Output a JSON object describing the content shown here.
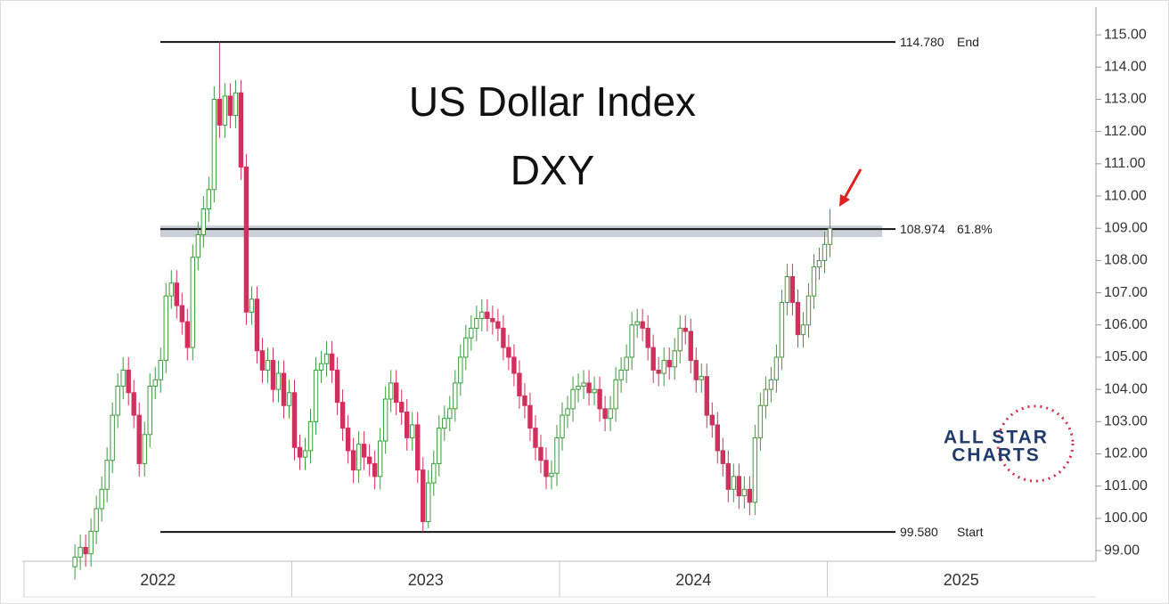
{
  "chart_data": {
    "type": "candlestick",
    "title": "US Dollar Index",
    "subtitle": "DXY",
    "watermark_lines": [
      "ALL STAR",
      "CHARTS"
    ],
    "up_color": "#3d9a3d",
    "down_color": "#d0305e",
    "xlim": [
      2022,
      2026
    ],
    "xticks": [
      2022,
      2023,
      2024,
      2025
    ],
    "ylim": [
      98.67,
      115.86
    ],
    "yticks": [
      {
        "value": 99,
        "label": "99.00"
      },
      {
        "value": 100,
        "label": "100.00"
      },
      {
        "value": 101,
        "label": "101.00"
      },
      {
        "value": 102,
        "label": "102.00"
      },
      {
        "value": 103,
        "label": "103.00"
      },
      {
        "value": 104,
        "label": "104.00"
      },
      {
        "value": 105,
        "label": "105.00"
      },
      {
        "value": 106,
        "label": "106.00"
      },
      {
        "value": 107,
        "label": "107.00"
      },
      {
        "value": 108,
        "label": "108.00"
      },
      {
        "value": 109,
        "label": "109.00"
      },
      {
        "value": 110,
        "label": "110.00"
      },
      {
        "value": 111,
        "label": "111.00"
      },
      {
        "value": 112,
        "label": "112.00"
      },
      {
        "value": 113,
        "label": "113.00"
      },
      {
        "value": 114,
        "label": "114.00"
      },
      {
        "value": 115,
        "label": "115.00"
      }
    ],
    "levels": [
      {
        "value": 114.78,
        "value_label": "114.780",
        "label": "End"
      },
      {
        "value": 108.974,
        "value_label": "108.974",
        "label": "61.8%"
      },
      {
        "value": 99.58,
        "value_label": "99.580",
        "label": "Start"
      }
    ],
    "x": [
      2022.19,
      2022.21,
      2022.23,
      2022.25,
      2022.27,
      2022.29,
      2022.31,
      2022.33,
      2022.35,
      2022.37,
      2022.39,
      2022.41,
      2022.43,
      2022.45,
      2022.47,
      2022.49,
      2022.51,
      2022.53,
      2022.55,
      2022.57,
      2022.59,
      2022.61,
      2022.63,
      2022.65,
      2022.67,
      2022.69,
      2022.71,
      2022.73,
      2022.75,
      2022.77,
      2022.79,
      2022.81,
      2022.83,
      2022.85,
      2022.87,
      2022.89,
      2022.91,
      2022.93,
      2022.95,
      2022.97,
      2022.99,
      2023.01,
      2023.03,
      2023.05,
      2023.07,
      2023.09,
      2023.11,
      2023.13,
      2023.15,
      2023.17,
      2023.19,
      2023.21,
      2023.23,
      2023.25,
      2023.27,
      2023.29,
      2023.31,
      2023.33,
      2023.35,
      2023.37,
      2023.39,
      2023.41,
      2023.43,
      2023.45,
      2023.47,
      2023.49,
      2023.51,
      2023.53,
      2023.55,
      2023.57,
      2023.59,
      2023.61,
      2023.63,
      2023.65,
      2023.67,
      2023.69,
      2023.71,
      2023.73,
      2023.75,
      2023.77,
      2023.79,
      2023.81,
      2023.83,
      2023.85,
      2023.87,
      2023.89,
      2023.91,
      2023.93,
      2023.95,
      2023.97,
      2023.99,
      2024.01,
      2024.03,
      2024.05,
      2024.07,
      2024.09,
      2024.11,
      2024.13,
      2024.15,
      2024.17,
      2024.19,
      2024.21,
      2024.23,
      2024.25,
      2024.27,
      2024.29,
      2024.31,
      2024.33,
      2024.35,
      2024.37,
      2024.39,
      2024.41,
      2024.43,
      2024.45,
      2024.47,
      2024.49,
      2024.51,
      2024.53,
      2024.55,
      2024.57,
      2024.59,
      2024.61,
      2024.63,
      2024.65,
      2024.67,
      2024.69,
      2024.71,
      2024.73,
      2024.75,
      2024.77,
      2024.79,
      2024.81,
      2024.83,
      2024.85,
      2024.87,
      2024.89,
      2024.91,
      2024.93,
      2024.95,
      2024.97,
      2024.99,
      2025.01
    ],
    "open": [
      98.5,
      98.8,
      99.1,
      98.9,
      99.6,
      100.3,
      100.9,
      101.8,
      103.2,
      104.1,
      104.6,
      103.9,
      103.2,
      101.7,
      102.6,
      104.1,
      104.3,
      104.9,
      106.9,
      107.3,
      106.6,
      106.1,
      105.3,
      108.1,
      108.8,
      109.6,
      110.2,
      113.0,
      112.2,
      113.1,
      112.5,
      113.2,
      110.9,
      106.4,
      106.8,
      105.2,
      104.6,
      104.9,
      104.0,
      104.5,
      103.5,
      103.9,
      102.2,
      101.9,
      102.1,
      103.0,
      104.6,
      104.8,
      105.1,
      104.6,
      103.6,
      102.8,
      102.1,
      101.5,
      102.3,
      101.9,
      101.7,
      101.3,
      102.4,
      103.7,
      104.2,
      103.6,
      103.3,
      102.5,
      102.9,
      101.5,
      99.9,
      101.1,
      101.7,
      102.8,
      103.1,
      103.4,
      104.2,
      105.0,
      105.6,
      105.9,
      106.2,
      106.4,
      106.2,
      106.1,
      105.9,
      105.3,
      105.0,
      104.5,
      103.8,
      103.5,
      102.8,
      102.2,
      101.8,
      101.3,
      101.4,
      102.5,
      103.2,
      103.4,
      104.0,
      104.1,
      104.2,
      103.9,
      104.0,
      103.4,
      103.1,
      103.4,
      104.3,
      104.6,
      105.0,
      106.0,
      106.1,
      105.9,
      105.3,
      104.6,
      104.5,
      104.9,
      104.7,
      105.2,
      105.9,
      105.8,
      104.9,
      104.3,
      104.4,
      103.2,
      102.9,
      102.1,
      101.7,
      100.9,
      101.3,
      100.7,
      100.9,
      100.5,
      102.5,
      103.5,
      104.0,
      104.3,
      105.0,
      106.7,
      107.5,
      106.7,
      105.7,
      106.0,
      106.9,
      107.8,
      108.0,
      108.5
    ],
    "high": [
      99.2,
      99.5,
      99.5,
      100.0,
      100.7,
      101.3,
      102.2,
      103.6,
      104.5,
      105.0,
      105.0,
      104.3,
      103.6,
      103.0,
      104.5,
      104.7,
      105.3,
      107.3,
      107.7,
      107.7,
      107.0,
      106.5,
      108.5,
      109.2,
      110.0,
      110.6,
      113.4,
      114.78,
      113.5,
      113.5,
      113.6,
      113.6,
      111.3,
      107.2,
      107.2,
      105.6,
      105.3,
      105.3,
      104.9,
      104.9,
      104.3,
      104.3,
      102.6,
      102.5,
      103.4,
      105.0,
      105.2,
      105.5,
      105.5,
      105.0,
      104.0,
      103.2,
      102.5,
      102.7,
      102.7,
      102.3,
      102.1,
      102.8,
      104.1,
      104.6,
      104.6,
      104.0,
      103.7,
      103.3,
      103.3,
      101.9,
      101.5,
      102.1,
      103.2,
      103.5,
      103.8,
      104.6,
      105.4,
      106.0,
      106.3,
      106.6,
      106.8,
      106.8,
      106.6,
      106.5,
      106.3,
      105.7,
      105.4,
      104.9,
      104.2,
      103.9,
      103.2,
      102.6,
      102.2,
      101.8,
      102.9,
      103.6,
      103.8,
      104.4,
      104.5,
      104.6,
      104.6,
      104.4,
      104.4,
      103.8,
      103.8,
      104.7,
      105.0,
      105.4,
      106.4,
      106.5,
      106.5,
      106.3,
      105.7,
      105.0,
      105.3,
      105.3,
      105.6,
      106.3,
      106.3,
      106.2,
      105.3,
      104.8,
      104.8,
      103.6,
      103.3,
      102.5,
      102.1,
      101.7,
      101.7,
      101.3,
      101.3,
      102.9,
      103.9,
      104.4,
      104.7,
      105.4,
      107.1,
      107.9,
      107.9,
      107.1,
      106.4,
      107.3,
      108.2,
      108.4,
      108.9,
      109.6
    ],
    "low": [
      98.1,
      98.4,
      98.5,
      98.5,
      99.2,
      99.9,
      100.5,
      101.4,
      102.8,
      103.7,
      103.5,
      102.8,
      101.3,
      101.3,
      102.2,
      103.7,
      103.9,
      104.5,
      106.5,
      106.2,
      105.7,
      104.9,
      104.9,
      107.7,
      108.4,
      109.2,
      109.8,
      111.8,
      111.8,
      112.1,
      112.1,
      110.5,
      106.0,
      106.0,
      104.8,
      104.2,
      104.2,
      103.6,
      103.6,
      103.1,
      103.1,
      101.8,
      101.5,
      101.5,
      101.7,
      102.6,
      104.2,
      104.4,
      104.2,
      103.2,
      102.4,
      101.7,
      101.1,
      101.1,
      101.5,
      101.3,
      100.9,
      100.9,
      102.0,
      103.3,
      103.2,
      102.9,
      102.1,
      102.1,
      101.1,
      99.58,
      99.7,
      100.7,
      101.3,
      102.4,
      102.7,
      103.0,
      103.8,
      104.6,
      105.2,
      105.5,
      105.8,
      105.8,
      105.7,
      105.5,
      104.9,
      104.6,
      104.1,
      103.4,
      103.1,
      102.4,
      101.8,
      101.4,
      100.9,
      100.9,
      101.0,
      102.1,
      102.8,
      103.0,
      103.6,
      103.7,
      103.5,
      103.5,
      103.0,
      102.7,
      102.7,
      103.0,
      103.9,
      104.2,
      104.6,
      105.6,
      105.5,
      104.9,
      104.2,
      104.1,
      104.1,
      104.3,
      104.3,
      104.8,
      105.4,
      104.5,
      103.9,
      103.9,
      102.8,
      102.5,
      101.7,
      101.3,
      100.5,
      100.5,
      100.3,
      100.3,
      100.1,
      100.1,
      102.1,
      103.1,
      103.6,
      103.9,
      104.6,
      106.3,
      106.3,
      105.3,
      105.3,
      105.6,
      106.5,
      107.4,
      107.6,
      108.1
    ],
    "close": [
      98.8,
      99.1,
      98.9,
      99.6,
      100.3,
      100.9,
      101.8,
      103.2,
      104.1,
      104.6,
      103.9,
      103.2,
      101.7,
      102.6,
      104.1,
      104.3,
      104.9,
      106.9,
      107.3,
      106.6,
      106.1,
      105.3,
      108.1,
      108.8,
      109.6,
      110.2,
      113.0,
      112.2,
      113.1,
      112.5,
      113.2,
      110.9,
      106.4,
      106.8,
      105.2,
      104.6,
      104.9,
      104.0,
      104.5,
      103.5,
      103.9,
      102.2,
      101.9,
      102.1,
      103.0,
      104.6,
      104.8,
      105.1,
      104.6,
      103.6,
      102.8,
      102.1,
      101.5,
      102.3,
      101.9,
      101.7,
      101.3,
      102.4,
      103.7,
      104.2,
      103.6,
      103.3,
      102.5,
      102.9,
      101.5,
      99.9,
      101.1,
      101.7,
      102.8,
      103.1,
      103.4,
      104.2,
      105.0,
      105.6,
      105.9,
      106.2,
      106.4,
      106.2,
      106.1,
      105.9,
      105.3,
      105.0,
      104.5,
      103.8,
      103.5,
      102.8,
      102.2,
      101.8,
      101.3,
      101.4,
      102.5,
      103.2,
      103.4,
      104.0,
      104.1,
      104.2,
      103.9,
      104.0,
      103.4,
      103.1,
      103.4,
      104.3,
      104.6,
      105.0,
      106.0,
      106.1,
      105.9,
      105.3,
      104.6,
      104.5,
      104.9,
      104.7,
      105.2,
      105.9,
      105.8,
      104.9,
      104.3,
      104.4,
      103.2,
      102.9,
      102.1,
      101.7,
      100.9,
      101.3,
      100.7,
      100.9,
      100.5,
      102.5,
      103.5,
      104.0,
      104.3,
      105.0,
      106.7,
      107.5,
      106.7,
      105.7,
      106.0,
      106.9,
      107.8,
      108.0,
      108.5,
      109.0
    ]
  }
}
